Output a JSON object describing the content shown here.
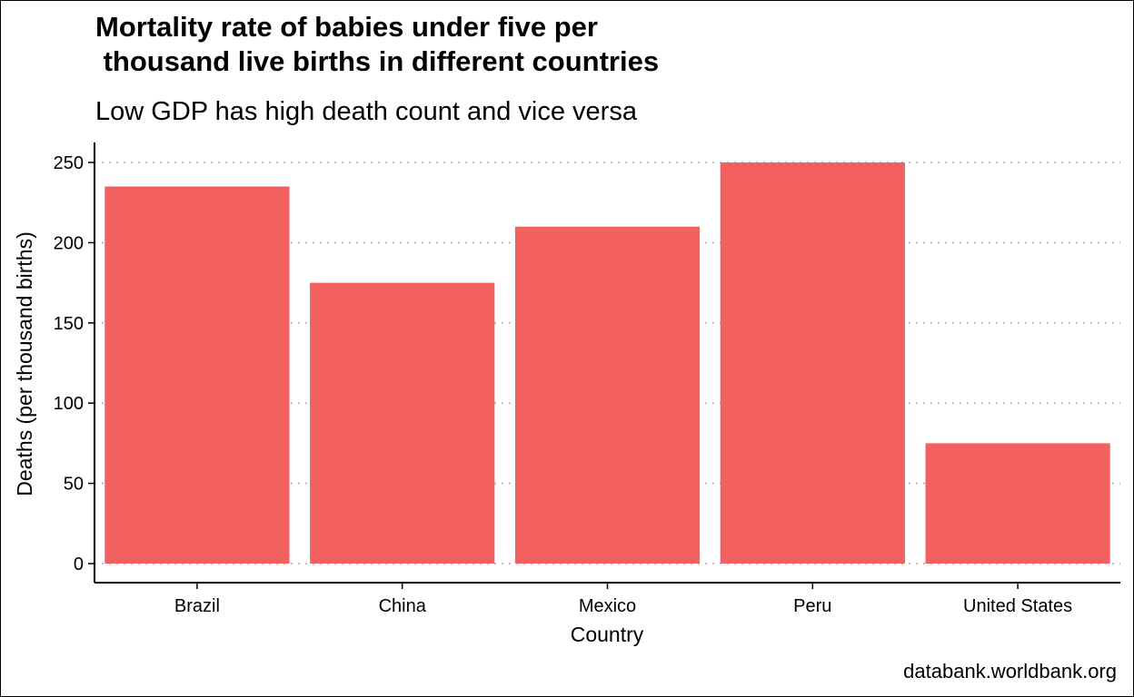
{
  "title": "Mortality rate of babies under five per\n thousand live births in different countries",
  "subtitle": "Low GDP has high death count and vice versa",
  "caption": "databank.worldbank.org",
  "chart_data": {
    "type": "bar",
    "xlabel": "Country",
    "ylabel": "Deaths (per thousand births)",
    "categories": [
      "Brazil",
      "China",
      "Mexico",
      "Peru",
      "United States"
    ],
    "values": [
      235,
      175,
      210,
      250,
      75
    ],
    "ylim": [
      0,
      262
    ],
    "yticks": [
      0,
      50,
      100,
      150,
      200,
      250
    ],
    "grid": "horizontal dotted",
    "bar_color": "#F26060",
    "gridline_color": "#BDBDBD"
  }
}
